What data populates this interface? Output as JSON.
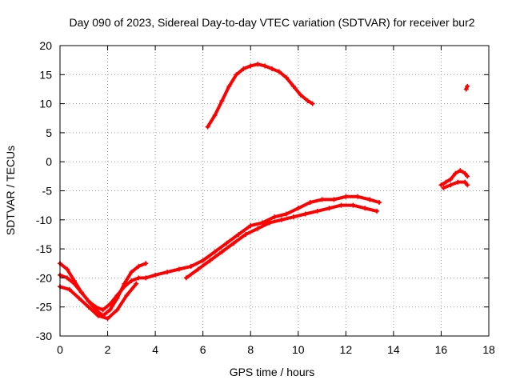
{
  "chart_data": {
    "type": "line",
    "title": "Day 090 of 2023, Sidereal Day-to-day VTEC variation (SDTVAR) for receiver bur2",
    "xlabel": "GPS time / hours",
    "ylabel": "SDTVAR / TECUs",
    "xlim": [
      0,
      18
    ],
    "ylim": [
      -30,
      20
    ],
    "xticks": [
      0,
      2,
      4,
      6,
      8,
      10,
      12,
      14,
      16,
      18
    ],
    "yticks": [
      -30,
      -25,
      -20,
      -15,
      -10,
      -5,
      0,
      5,
      10,
      15,
      20
    ],
    "grid": true,
    "color": "#ff0000",
    "series": [
      {
        "name": "arc-lower-a",
        "x": [
          0.0,
          0.3,
          0.6,
          0.9,
          1.2,
          1.5,
          1.8,
          2.1,
          2.4,
          2.7,
          3.0,
          3.3,
          3.6,
          4.0,
          4.5,
          5.0,
          5.5,
          6.0,
          6.5,
          7.0,
          7.5,
          8.0,
          8.5,
          9.0,
          9.5,
          10.0,
          10.5,
          11.0,
          11.5,
          12.0,
          12.5,
          13.0,
          13.4
        ],
        "y": [
          -17.5,
          -18.5,
          -20.5,
          -22.5,
          -24.0,
          -25.0,
          -25.5,
          -24.5,
          -23.0,
          -21.5,
          -20.5,
          -20.0,
          -20.0,
          -19.5,
          -19.0,
          -18.5,
          -18.0,
          -17.0,
          -15.5,
          -14.0,
          -12.5,
          -11.0,
          -10.5,
          -9.5,
          -9.0,
          -8.0,
          -7.0,
          -6.5,
          -6.5,
          -6.0,
          -6.0,
          -6.5,
          -7.0
        ]
      },
      {
        "name": "arc-lower-b",
        "x": [
          0.0,
          0.3,
          0.6,
          0.9,
          1.2,
          1.5,
          1.8,
          2.1,
          2.4,
          2.7,
          3.0,
          3.3,
          3.6
        ],
        "y": [
          -19.5,
          -20.0,
          -21.0,
          -22.5,
          -24.0,
          -25.5,
          -26.5,
          -25.5,
          -23.5,
          -21.0,
          -19.0,
          -18.0,
          -17.5
        ]
      },
      {
        "name": "arc-lower-c",
        "x": [
          0.0,
          0.4,
          0.8,
          1.2,
          1.6,
          2.0,
          2.4,
          2.8,
          3.2
        ],
        "y": [
          -21.5,
          -22.0,
          -23.5,
          -25.0,
          -26.5,
          -27.0,
          -25.5,
          -23.0,
          -21.0
        ]
      },
      {
        "name": "arc-mid",
        "x": [
          5.3,
          5.8,
          6.3,
          6.8,
          7.3,
          7.8,
          8.3,
          8.8,
          9.3,
          9.8,
          10.3,
          10.8,
          11.3,
          11.8,
          12.3,
          12.8,
          13.3
        ],
        "y": [
          -20.0,
          -18.5,
          -17.0,
          -15.5,
          -14.0,
          -12.5,
          -11.5,
          -10.5,
          -10.0,
          -9.5,
          -9.0,
          -8.5,
          -8.0,
          -7.5,
          -7.5,
          -8.0,
          -8.5
        ]
      },
      {
        "name": "arc-upper",
        "x": [
          6.2,
          6.5,
          6.8,
          7.1,
          7.4,
          7.7,
          8.0,
          8.3,
          8.6,
          8.9,
          9.2,
          9.5,
          9.8,
          10.1,
          10.4,
          10.6
        ],
        "y": [
          6.0,
          8.0,
          10.5,
          13.0,
          15.0,
          16.0,
          16.5,
          16.8,
          16.5,
          16.0,
          15.5,
          14.5,
          13.0,
          11.5,
          10.5,
          10.0
        ]
      },
      {
        "name": "arc-late",
        "x": [
          16.0,
          16.2,
          16.4,
          16.6,
          16.8,
          17.0,
          17.1
        ],
        "y": [
          -4.0,
          -3.5,
          -3.0,
          -2.0,
          -1.5,
          -2.0,
          -2.5
        ]
      },
      {
        "name": "arc-late-b",
        "x": [
          16.1,
          16.4,
          16.7,
          17.0,
          17.1
        ],
        "y": [
          -4.5,
          -4.0,
          -3.5,
          -3.5,
          -4.0
        ]
      },
      {
        "name": "arc-point",
        "x": [
          17.05,
          17.1
        ],
        "y": [
          12.5,
          13.0
        ]
      }
    ]
  }
}
